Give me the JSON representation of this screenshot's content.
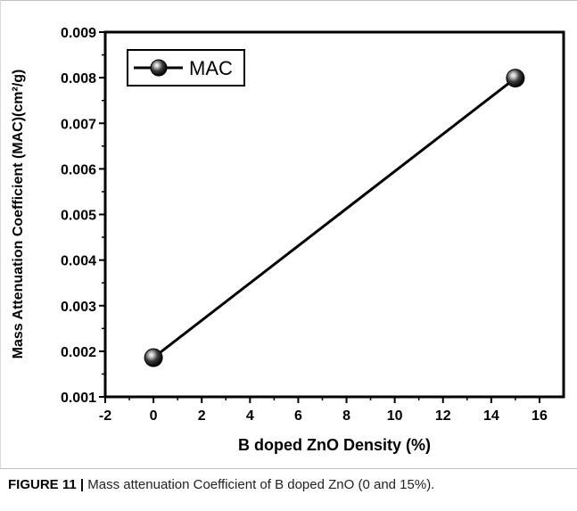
{
  "figure": {
    "caption_label": "FIGURE 11 |",
    "caption_text": " Mass attenuation Coefficient of B doped ZnO (0 and 15%)."
  },
  "chart_data": {
    "type": "line",
    "series": [
      {
        "name": "MAC",
        "x": [
          0,
          15
        ],
        "y": [
          0.00186,
          0.00799
        ],
        "color": "#000000",
        "marker": "sphere"
      }
    ],
    "xlabel": "B doped ZnO Density (%)",
    "ylabel": "Mass Attenuation Coefficient (MAC)(cm²/g)",
    "xlim": [
      -2,
      17
    ],
    "ylim": [
      0.001,
      0.009
    ],
    "xticks": [
      -2,
      0,
      2,
      4,
      6,
      8,
      10,
      12,
      14,
      16
    ],
    "xtick_labels": [
      "-2",
      "0",
      "2",
      "4",
      "6",
      "8",
      "10",
      "12",
      "14",
      "16"
    ],
    "yticks": [
      0.001,
      0.002,
      0.003,
      0.004,
      0.005,
      0.006,
      0.007,
      0.008,
      0.009
    ],
    "ytick_labels": [
      "0.001",
      "0.002",
      "0.003",
      "0.004",
      "0.005",
      "0.006",
      "0.007",
      "0.008",
      "0.009"
    ],
    "legend_position": "top-left",
    "grid": false
  }
}
